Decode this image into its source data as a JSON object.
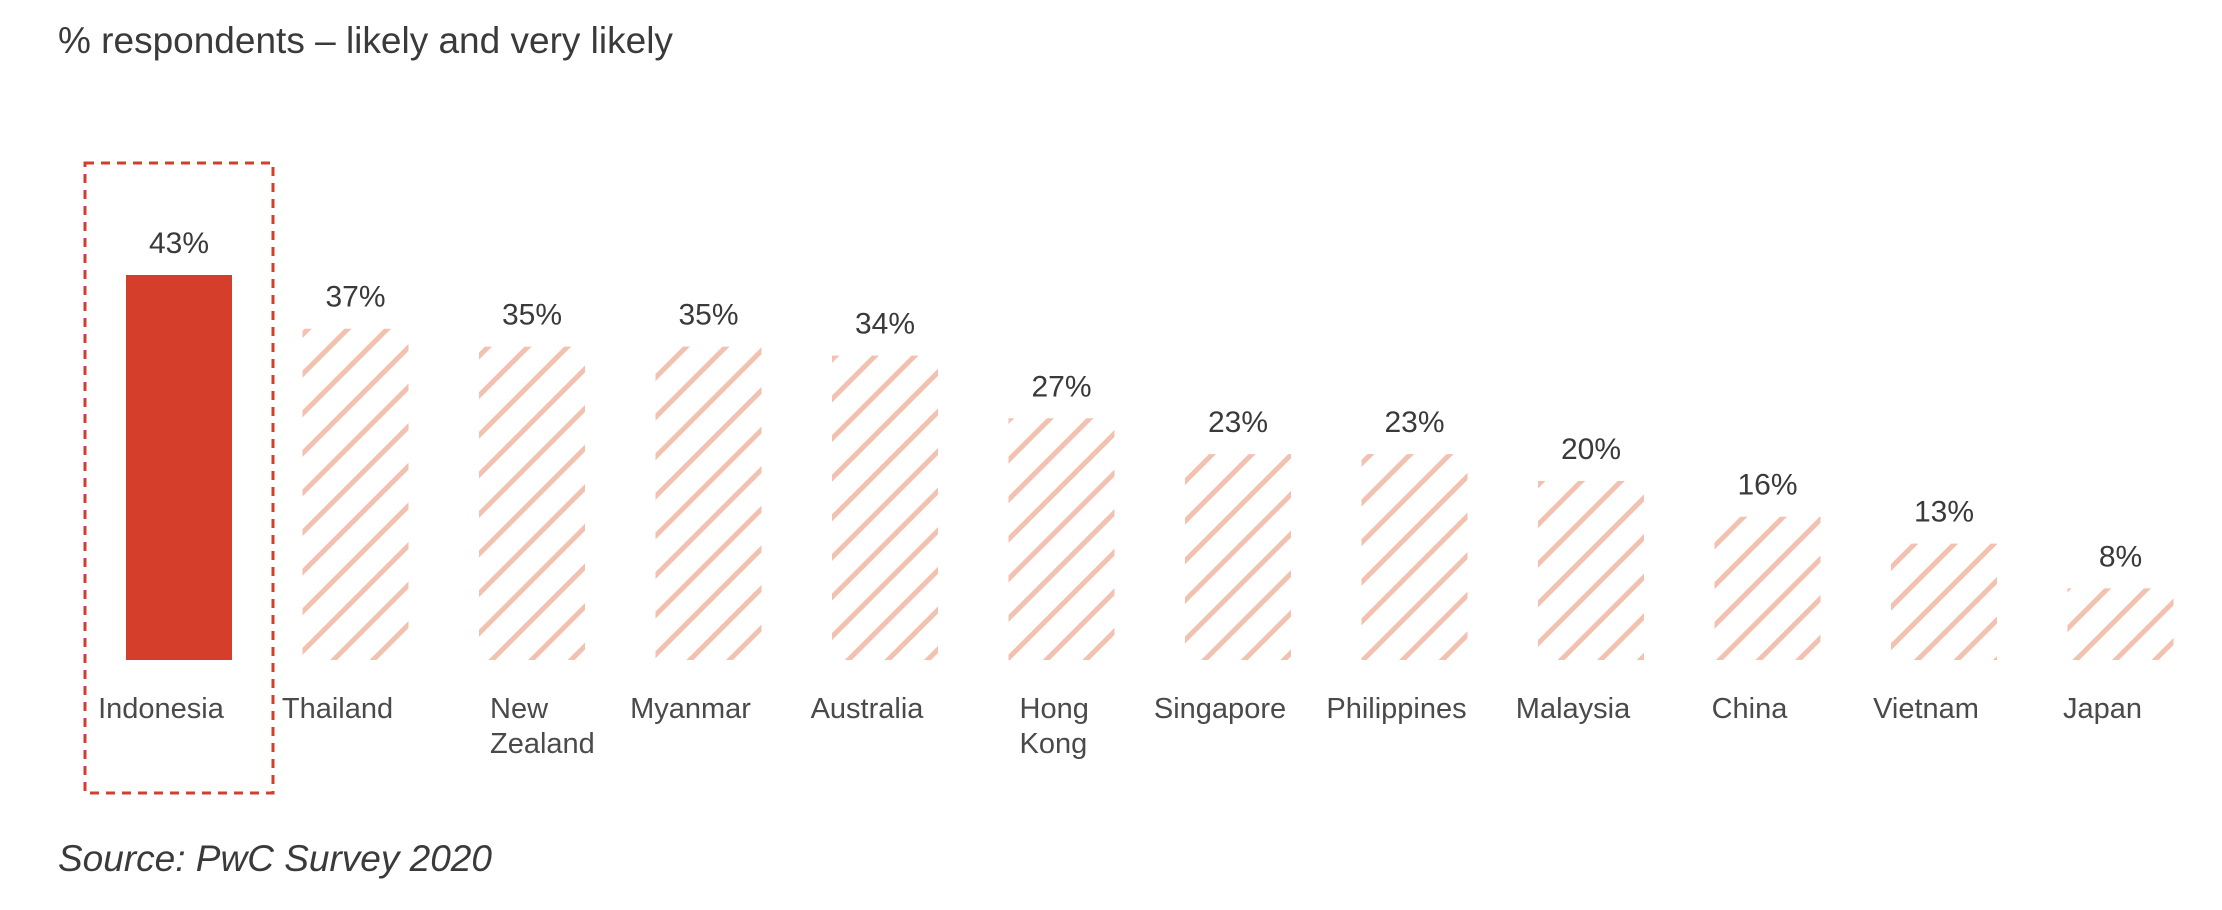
{
  "header": {
    "subtitle": "% respondents – likely and very likely"
  },
  "footer": {
    "source": "Source: PwC Survey 2020"
  },
  "colors": {
    "highlight_bar": "#d63e2c",
    "hatched_bar": "#f2c1b0",
    "highlight_box": "#d63e2c",
    "text": "#3a3a3a"
  },
  "chart_data": {
    "type": "bar",
    "title": "% respondents – likely and very likely",
    "xlabel": "",
    "ylabel": "",
    "ylim": [
      0,
      43
    ],
    "grid": false,
    "highlighted_category": "Indonesia",
    "categories": [
      "Indonesia",
      "Thailand",
      "New Zealand",
      "Myanmar",
      "Australia",
      "Hong Kong",
      "Singapore",
      "Philippines",
      "Malaysia",
      "China",
      "Vietnam",
      "Japan"
    ],
    "category_lines": [
      [
        "Indonesia"
      ],
      [
        "Thailand"
      ],
      [
        "New",
        "Zealand"
      ],
      [
        "Myanmar"
      ],
      [
        "Australia"
      ],
      [
        "Hong",
        "Kong"
      ],
      [
        "Singapore"
      ],
      [
        "Philippines"
      ],
      [
        "Malaysia"
      ],
      [
        "China"
      ],
      [
        "Vietnam"
      ],
      [
        "Japan"
      ]
    ],
    "values": [
      43,
      37,
      35,
      35,
      34,
      27,
      23,
      23,
      20,
      16,
      13,
      8
    ],
    "value_labels": [
      "43%",
      "37%",
      "35%",
      "35%",
      "34%",
      "27%",
      "23%",
      "23%",
      "20%",
      "16%",
      "13%",
      "8%"
    ]
  }
}
